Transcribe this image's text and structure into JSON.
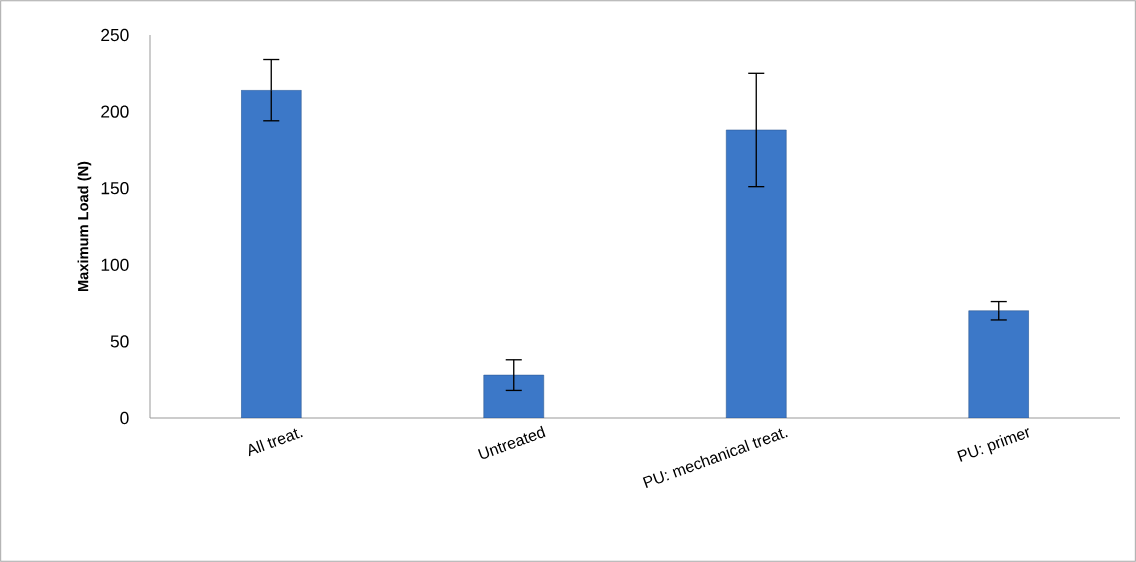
{
  "chart_data": {
    "type": "bar",
    "ylabel": "Maximum Load (N)",
    "categories": [
      "All treat.",
      "Untreated",
      "PU: mechanical treat.",
      "PU: primer"
    ],
    "values": [
      214,
      28,
      188,
      70
    ],
    "errors": [
      20,
      10,
      37,
      6
    ],
    "color": "#3c78c8",
    "ylim": [
      0,
      250
    ],
    "yticks": [
      0,
      50,
      100,
      150,
      200,
      250
    ],
    "grid": false
  }
}
